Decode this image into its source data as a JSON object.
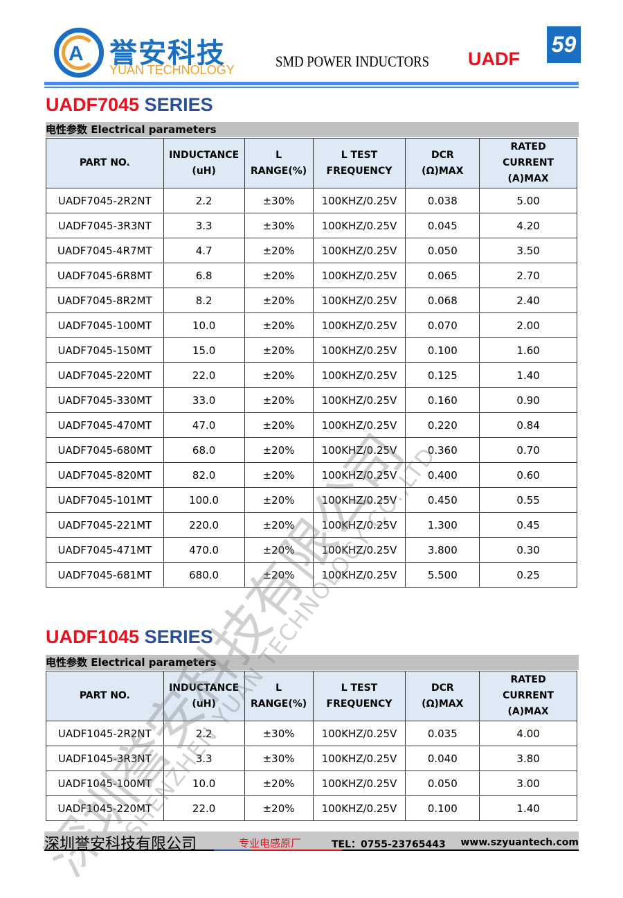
{
  "header": {
    "logo_cn": "誉安科技",
    "logo_en": "YUAN TECHNOLOGY",
    "title": "SMD POWER INDUCTORS",
    "series": "UADF",
    "page_number": "59"
  },
  "columns": [
    "PART NO.",
    "INDUCTANCE (uH)",
    "L RANGE(%)",
    "L TEST FREQUENCY",
    "DCR (Ω)MAX",
    "RATED CURRENT (A)MAX"
  ],
  "section_label": "电性参数 Electrical parameters",
  "tables": [
    {
      "title_red": "UADF7045",
      "title_blue": " SERIES",
      "rows": [
        [
          "UADF7045-2R2NT",
          "2.2",
          "±30%",
          "100KHZ/0.25V",
          "0.038",
          "5.00"
        ],
        [
          "UADF7045-3R3NT",
          "3.3",
          "±30%",
          "100KHZ/0.25V",
          "0.045",
          "4.20"
        ],
        [
          "UADF7045-4R7MT",
          "4.7",
          "±20%",
          "100KHZ/0.25V",
          "0.050",
          "3.50"
        ],
        [
          "UADF7045-6R8MT",
          "6.8",
          "±20%",
          "100KHZ/0.25V",
          "0.065",
          "2.70"
        ],
        [
          "UADF7045-8R2MT",
          "8.2",
          "±20%",
          "100KHZ/0.25V",
          "0.068",
          "2.40"
        ],
        [
          "UADF7045-100MT",
          "10.0",
          "±20%",
          "100KHZ/0.25V",
          "0.070",
          "2.00"
        ],
        [
          "UADF7045-150MT",
          "15.0",
          "±20%",
          "100KHZ/0.25V",
          "0.100",
          "1.60"
        ],
        [
          "UADF7045-220MT",
          "22.0",
          "±20%",
          "100KHZ/0.25V",
          "0.125",
          "1.40"
        ],
        [
          "UADF7045-330MT",
          "33.0",
          "±20%",
          "100KHZ/0.25V",
          "0.160",
          "0.90"
        ],
        [
          "UADF7045-470MT",
          "47.0",
          "±20%",
          "100KHZ/0.25V",
          "0.220",
          "0.84"
        ],
        [
          "UADF7045-680MT",
          "68.0",
          "±20%",
          "100KHZ/0.25V",
          "0.360",
          "0.70"
        ],
        [
          "UADF7045-820MT",
          "82.0",
          "±20%",
          "100KHZ/0.25V",
          "0.400",
          "0.60"
        ],
        [
          "UADF7045-101MT",
          "100.0",
          "±20%",
          "100KHZ/0.25V",
          "0.450",
          "0.55"
        ],
        [
          "UADF7045-221MT",
          "220.0",
          "±20%",
          "100KHZ/0.25V",
          "1.300",
          "0.45"
        ],
        [
          "UADF7045-471MT",
          "470.0",
          "±20%",
          "100KHZ/0.25V",
          "3.800",
          "0.30"
        ],
        [
          "UADF7045-681MT",
          "680.0",
          "±20%",
          "100KHZ/0.25V",
          "5.500",
          "0.25"
        ]
      ]
    },
    {
      "title_red": "UADF1045",
      "title_blue": " SERIES",
      "rows": [
        [
          "UADF1045-2R2NT",
          "2.2",
          "±30%",
          "100KHZ/0.25V",
          "0.035",
          "4.00"
        ],
        [
          "UADF1045-3R3NT",
          "3.3",
          "±30%",
          "100KHZ/0.25V",
          "0.040",
          "3.80"
        ],
        [
          "UADF1045-100MT",
          "10.0",
          "±20%",
          "100KHZ/0.25V",
          "0.050",
          "3.00"
        ],
        [
          "UADF1045-220MT",
          "22.0",
          "±20%",
          "100KHZ/0.25V",
          "0.100",
          "1.40"
        ]
      ]
    }
  ],
  "watermark": {
    "cn": "深圳誉安科技有限公司",
    "en": "SHENZHEN YUAN TECHNOLOGY CO.,LTD"
  },
  "footer": {
    "company": "深圳誉安科技有限公司",
    "slogan": "专业电感原厂",
    "tel": "TEL：0755-23765443",
    "website": "www.szyuantech.com"
  },
  "colors": {
    "brand_blue": "#1a6fc2",
    "accent_red": "#e8101a",
    "header_fill": "#dde9f5"
  }
}
